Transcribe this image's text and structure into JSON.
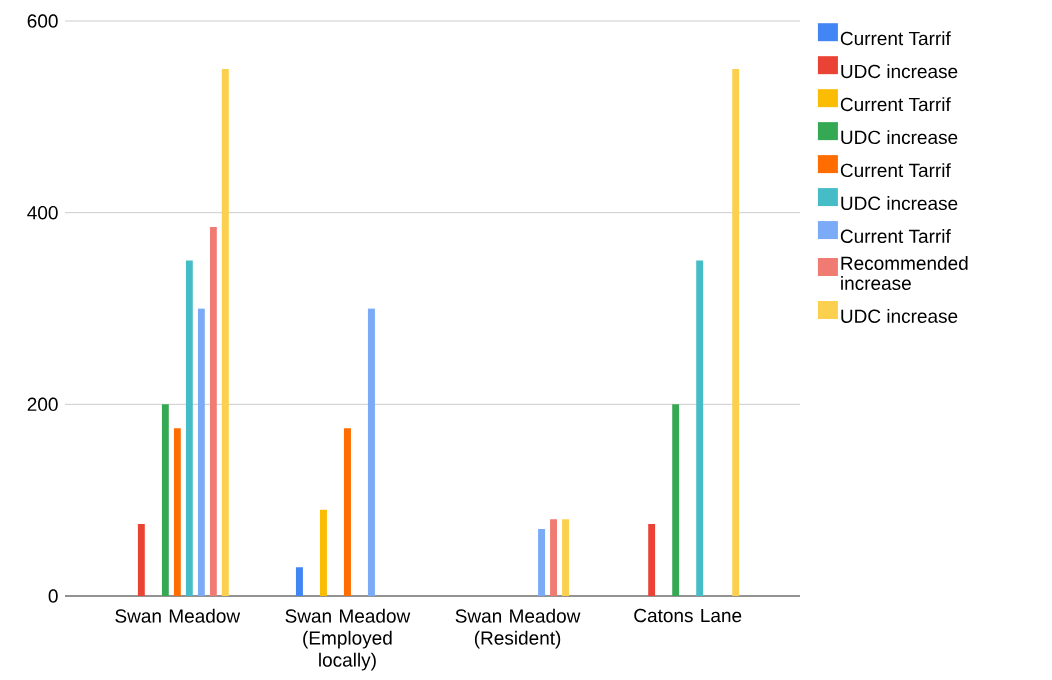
{
  "chart_data": {
    "type": "bar",
    "categories": [
      "Swan Meadow",
      "Swan Meadow (Employed locally)",
      "Swan Meadow (Resident)",
      "Catons Lane"
    ],
    "series": [
      {
        "name": "Current Tarrif",
        "color": "#4285f4",
        "values": [
          null,
          30,
          null,
          null
        ]
      },
      {
        "name": "UDC increase",
        "color": "#ea4335",
        "values": [
          75,
          null,
          null,
          75
        ]
      },
      {
        "name": "Current Tarrif",
        "color": "#fbbc04",
        "values": [
          null,
          90,
          null,
          null
        ]
      },
      {
        "name": "UDC increase",
        "color": "#34a853",
        "values": [
          200,
          null,
          null,
          200
        ]
      },
      {
        "name": "Current Tarrif",
        "color": "#ff6d01",
        "values": [
          175,
          175,
          null,
          null
        ]
      },
      {
        "name": "UDC increase",
        "color": "#46bdc6",
        "values": [
          350,
          null,
          null,
          350
        ]
      },
      {
        "name": "Current Tarrif",
        "color": "#7baaf7",
        "values": [
          300,
          300,
          70,
          null
        ]
      },
      {
        "name": "Recommended increase",
        "color": "#f07b72",
        "values": [
          385,
          null,
          80,
          null
        ]
      },
      {
        "name": "UDC increase",
        "color": "#fcd04f",
        "values": [
          550,
          null,
          80,
          550
        ]
      }
    ],
    "ylim": [
      0,
      600
    ],
    "yticks": [
      0,
      200,
      400,
      600
    ],
    "grid": "y",
    "legend": "right"
  }
}
